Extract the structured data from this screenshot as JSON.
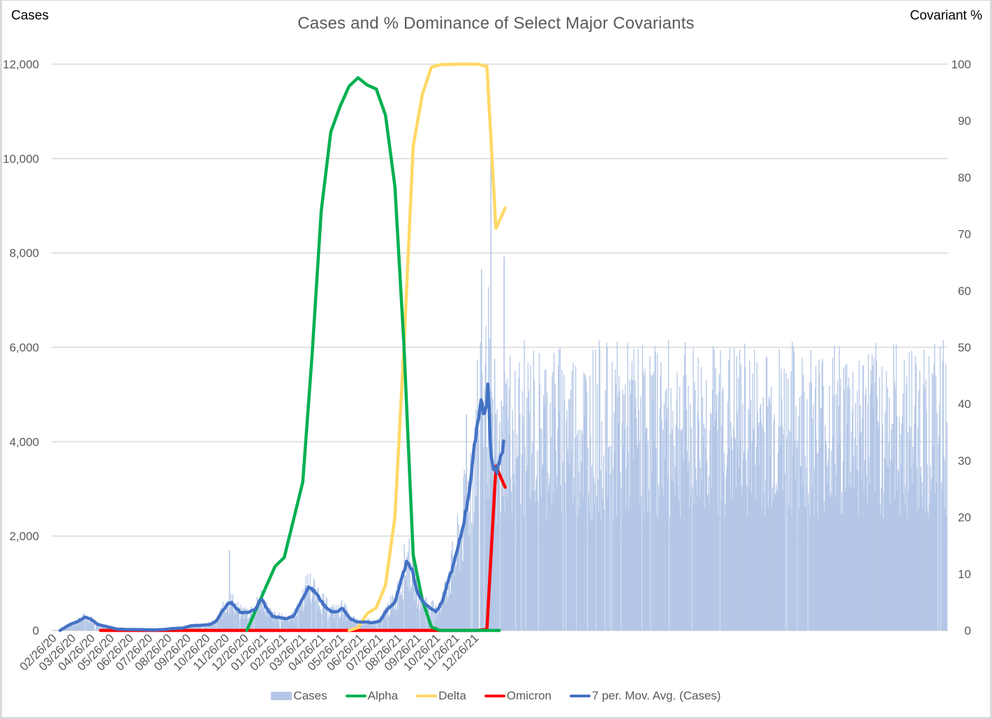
{
  "chart": {
    "title": "Cases and % Dominance of Select Major Covariants",
    "left_axis_title": "Cases",
    "right_axis_title": "Covariant %",
    "left_ticks": [
      "0",
      "2,000",
      "4,000",
      "6,000",
      "8,000",
      "10,000",
      "12,000"
    ],
    "right_ticks": [
      "0",
      "10",
      "20",
      "30",
      "40",
      "50",
      "60",
      "70",
      "80",
      "90",
      "100"
    ],
    "x_ticks": [
      "02/26/20",
      "03/26/20",
      "04/26/20",
      "05/26/20",
      "06/26/20",
      "07/26/20",
      "08/26/20",
      "09/26/20",
      "10/26/20",
      "11/26/20",
      "12/26/20",
      "01/26/21",
      "02/26/21",
      "03/26/21",
      "04/26/21",
      "05/26/21",
      "06/26/21",
      "07/26/21",
      "08/26/21",
      "09/26/21",
      "10/26/21",
      "11/26/21",
      "12/26/21"
    ],
    "legend": [
      {
        "label": "Cases",
        "color": "#b4c7e7",
        "kind": "box"
      },
      {
        "label": "Alpha",
        "color": "#00b050",
        "kind": "line"
      },
      {
        "label": "Delta",
        "color": "#ffd966",
        "kind": "line"
      },
      {
        "label": "Omicron",
        "color": "#ff0000",
        "kind": "line"
      },
      {
        "label": "7 per. Mov. Avg. (Cases)",
        "color": "#4472c4",
        "kind": "line"
      }
    ],
    "colors": {
      "cases": "#b4c7e7",
      "alpha": "#00b050",
      "delta": "#ffd966",
      "omicron": "#ff0000",
      "mov_avg": "#4472c4",
      "grid": "#d9d9d9"
    }
  },
  "chart_data": {
    "type": "bar+line",
    "title": "Cases and % Dominance of Select Major Covariants",
    "xlabel": "",
    "ylabel": "Cases",
    "y2label": "Covariant %",
    "ylim": [
      0,
      12000
    ],
    "y2lim": [
      0,
      100
    ],
    "grid": true,
    "legend_position": "bottom",
    "x_start": "02/26/20",
    "x_end_approx": "01/10/22",
    "categories_months": [
      "02/26/20",
      "03/26/20",
      "04/26/20",
      "05/26/20",
      "06/26/20",
      "07/26/20",
      "08/26/20",
      "09/26/20",
      "10/26/20",
      "11/26/20",
      "12/26/20",
      "01/26/21",
      "02/26/21",
      "03/26/21",
      "04/26/21",
      "05/26/21",
      "06/26/21",
      "07/26/21",
      "08/26/21",
      "09/26/21",
      "10/26/21",
      "11/26/21",
      "12/26/21"
    ],
    "mov_avg_cases_by_half_month": [
      [
        0.0,
        0
      ],
      [
        0.5,
        120
      ],
      [
        1.0,
        200
      ],
      [
        1.3,
        280
      ],
      [
        1.6,
        250
      ],
      [
        2.0,
        130
      ],
      [
        2.5,
        80
      ],
      [
        3.0,
        30
      ],
      [
        3.5,
        20
      ],
      [
        4.0,
        20
      ],
      [
        4.5,
        15
      ],
      [
        5.0,
        10
      ],
      [
        5.5,
        20
      ],
      [
        6.0,
        40
      ],
      [
        6.5,
        50
      ],
      [
        7.0,
        100
      ],
      [
        7.5,
        110
      ],
      [
        8.0,
        130
      ],
      [
        8.3,
        200
      ],
      [
        8.6,
        400
      ],
      [
        8.9,
        550
      ],
      [
        9.1,
        600
      ],
      [
        9.3,
        500
      ],
      [
        9.6,
        380
      ],
      [
        10.0,
        380
      ],
      [
        10.4,
        450
      ],
      [
        10.7,
        680
      ],
      [
        11.0,
        450
      ],
      [
        11.3,
        300
      ],
      [
        11.7,
        270
      ],
      [
        12.0,
        250
      ],
      [
        12.4,
        300
      ],
      [
        12.8,
        600
      ],
      [
        13.2,
        930
      ],
      [
        13.6,
        800
      ],
      [
        14.0,
        550
      ],
      [
        14.4,
        400
      ],
      [
        14.8,
        400
      ],
      [
        15.0,
        480
      ],
      [
        15.4,
        250
      ],
      [
        15.8,
        180
      ],
      [
        16.2,
        180
      ],
      [
        16.6,
        160
      ],
      [
        17.0,
        200
      ],
      [
        17.4,
        450
      ],
      [
        17.8,
        600
      ],
      [
        18.1,
        1000
      ],
      [
        18.4,
        1440
      ],
      [
        18.7,
        1300
      ],
      [
        19.0,
        800
      ],
      [
        19.3,
        600
      ],
      [
        19.6,
        500
      ],
      [
        20.0,
        400
      ],
      [
        20.3,
        600
      ],
      [
        20.6,
        1000
      ],
      [
        21.0,
        1500
      ],
      [
        21.3,
        2000
      ],
      [
        21.6,
        2600
      ],
      [
        21.9,
        3400
      ],
      [
        22.2,
        4500
      ],
      [
        22.4,
        4900
      ],
      [
        22.6,
        4500
      ],
      [
        22.75,
        5250
      ],
      [
        22.9,
        3600
      ],
      [
        23.2,
        3400
      ],
      [
        23.5,
        3700
      ],
      [
        23.6,
        4250
      ]
    ],
    "case_spikes": [
      {
        "month_index": 9.0,
        "cases": 1700
      },
      {
        "month_index": 21.6,
        "cases": 4580
      },
      {
        "month_index": 22.4,
        "cases": 7650
      },
      {
        "month_index": 22.9,
        "cases": 10870
      },
      {
        "month_index": 23.1,
        "cases": 5750
      },
      {
        "month_index": 23.6,
        "cases": 7920
      }
    ],
    "series": [
      {
        "name": "Alpha",
        "axis": "right",
        "points": [
          [
            9.93,
            0
          ],
          [
            10.92,
            7.5
          ],
          [
            11.43,
            11.3
          ],
          [
            11.92,
            12.9
          ],
          [
            12.9,
            26.2
          ],
          [
            13.4,
            48.7
          ],
          [
            13.88,
            74.0
          ],
          [
            14.39,
            88.0
          ],
          [
            14.87,
            92.4
          ],
          [
            15.36,
            96.1
          ],
          [
            15.84,
            97.6
          ],
          [
            16.33,
            96.3
          ],
          [
            16.81,
            95.6
          ],
          [
            17.3,
            91.0
          ],
          [
            17.8,
            78.4
          ],
          [
            18.28,
            50.5
          ],
          [
            18.77,
            13.3
          ],
          [
            19.26,
            5.3
          ],
          [
            19.74,
            0.6
          ],
          [
            20.2,
            0
          ],
          [
            21.6,
            0
          ],
          [
            22.2,
            0
          ],
          [
            23.35,
            0
          ]
        ]
      },
      {
        "name": "Delta",
        "axis": "right",
        "points": [
          [
            15.36,
            0
          ],
          [
            15.84,
            0.5
          ],
          [
            16.33,
            3.0
          ],
          [
            16.81,
            4.0
          ],
          [
            17.3,
            8.0
          ],
          [
            17.8,
            20.0
          ],
          [
            18.28,
            50.0
          ],
          [
            18.77,
            85.5
          ],
          [
            19.26,
            94.7
          ],
          [
            19.74,
            99.5
          ],
          [
            20.23,
            99.9
          ],
          [
            21.2,
            100
          ],
          [
            22.2,
            100
          ],
          [
            22.69,
            99.6
          ],
          [
            23.17,
            71.0
          ],
          [
            23.66,
            74.6
          ]
        ]
      },
      {
        "name": "Omicron",
        "axis": "right",
        "points": [
          [
            2.15,
            0
          ],
          [
            22.2,
            0
          ],
          [
            22.69,
            0.2
          ],
          [
            23.17,
            29.0
          ],
          [
            23.66,
            25.3
          ]
        ]
      },
      {
        "name": "7 per. Mov. Avg. (Cases)",
        "axis": "left",
        "ref": "mov_avg_cases_by_half_month"
      }
    ]
  }
}
